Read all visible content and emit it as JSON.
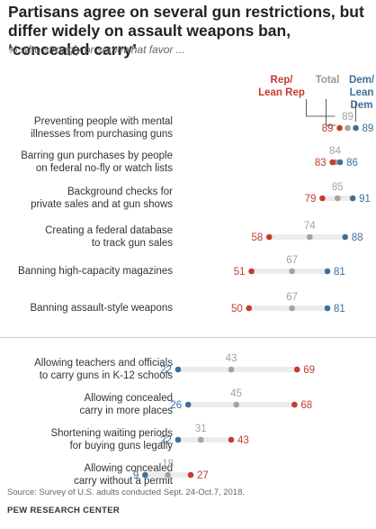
{
  "header": {
    "title": "Partisans agree on several gun restrictions, but differ widely on assault weapons ban, ‘concealed carry’",
    "subtitle": "% who strongly or somewhat favor ..."
  },
  "legend": {
    "rep_line1": "Rep/",
    "rep_line2": "Lean Rep",
    "total": "Total",
    "dem_line1": "Dem/",
    "dem_line2": "Lean Dem"
  },
  "footer": {
    "source": "Source: Survey of U.S. adults conducted Sept. 24-Oct.7, 2018.",
    "brand": "PEW RESEARCH CENTER"
  },
  "colors": {
    "rep": "#c43c30",
    "total": "#a3a3a3",
    "dem": "#3d6f9c",
    "bar": "#ececec"
  },
  "chart_data": {
    "type": "scatter",
    "style": "dot-plot",
    "title": "Partisans agree on several gun restrictions, but differ widely on assault weapons ban, ‘concealed carry’",
    "subtitle": "% who strongly or somewhat favor ...",
    "xlim": [
      0,
      100
    ],
    "series_names": [
      "Rep/Lean Rep",
      "Total",
      "Dem/Lean Dem"
    ],
    "categories": [
      [
        "Preventing people with mental",
        "illnesses from purchasing guns"
      ],
      [
        "Barring gun purchases by people",
        "on federal no-fly or watch lists"
      ],
      [
        "Background checks for",
        "private sales and at gun shows"
      ],
      [
        "Creating a federal database",
        "to track gun sales"
      ],
      [
        "Banning high-capacity magazines"
      ],
      [
        "Banning assault-style weapons"
      ],
      [
        "Allowing teachers and officials",
        "to carry guns in K-12 schools"
      ],
      [
        "Allowing concealed",
        "carry in more places"
      ],
      [
        "Shortening waiting periods",
        "for buying guns legally"
      ],
      [
        "Allowing concealed",
        "carry without a permit"
      ]
    ],
    "rep": [
      89,
      83,
      79,
      58,
      51,
      50,
      69,
      68,
      43,
      27
    ],
    "total": [
      89,
      84,
      85,
      74,
      67,
      67,
      43,
      45,
      31,
      18
    ],
    "dem": [
      89,
      86,
      91,
      88,
      81,
      81,
      22,
      26,
      22,
      9
    ]
  }
}
